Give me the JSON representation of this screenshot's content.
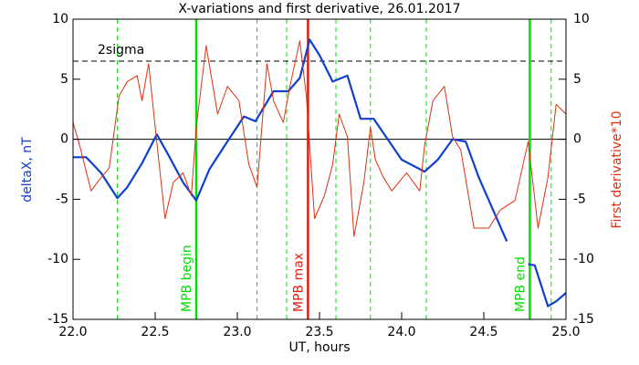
{
  "chart_data": {
    "type": "line",
    "title": "X-variations and first derivative, 26.01.2017",
    "xlabel": "UT, hours",
    "ylabel": "deltaX, nT",
    "y2label": "First derivative*10",
    "xlim": [
      22,
      25
    ],
    "xticks": [
      {
        "value": 22,
        "label": "22.0"
      },
      {
        "value": 22.5,
        "label": "22.5"
      },
      {
        "value": 23,
        "label": "23.0"
      },
      {
        "value": 23.5,
        "label": "23.5"
      },
      {
        "value": 24,
        "label": "24.0"
      },
      {
        "value": 24.5,
        "label": "24.5"
      },
      {
        "value": 25,
        "label": "25.0"
      }
    ],
    "ylim": [
      -15,
      10
    ],
    "yticks": [
      -15,
      -10,
      -5,
      0,
      5,
      10
    ],
    "y2lim": [
      -15,
      10
    ],
    "y2ticks": [
      -15,
      -10,
      -5,
      0,
      5,
      10
    ],
    "zero_line": 0,
    "threshold": {
      "label": "2sigma",
      "value": 6.5
    },
    "markers": [
      {
        "label": "MPB begin",
        "x": 22.75,
        "color": "#00e000"
      },
      {
        "label": "MPB max",
        "x": 23.43,
        "color": "#e02010"
      },
      {
        "label": "MPB end",
        "x": 24.78,
        "color": "#00e000"
      }
    ],
    "dashed_lines": {
      "color": "#00e000",
      "x": [
        22.27,
        23.12,
        23.3,
        23.6,
        23.81,
        24.15,
        24.91
      ]
    },
    "series": [
      {
        "name": "deltaX",
        "color": "#1040d0",
        "axis": "y",
        "x": [
          22.0,
          22.08,
          22.17,
          22.27,
          22.33,
          22.42,
          22.51,
          22.58,
          22.67,
          22.75,
          22.83,
          22.92,
          23.04,
          23.11,
          23.22,
          23.31,
          23.38,
          23.44,
          23.5,
          23.58,
          23.67,
          23.75,
          23.83,
          24.0,
          24.14,
          24.22,
          24.31,
          24.39,
          24.47,
          24.64,
          24.7,
          24.77,
          24.81,
          24.89,
          24.94,
          25.0
        ],
        "values": [
          -1.5,
          -1.5,
          -2.8,
          -4.9,
          -4,
          -2,
          0.4,
          -1.3,
          -3.6,
          -5.1,
          -2.5,
          -0.6,
          1.9,
          1.5,
          4,
          4,
          5.1,
          8.3,
          7,
          4.8,
          5.3,
          1.7,
          1.7,
          -1.7,
          -2.7,
          -1.7,
          0,
          -0.2,
          -3.2,
          -8.5,
          null,
          -10.4,
          -10.5,
          -13.9,
          -13.5,
          -12.8
        ]
      },
      {
        "name": "First derivative*10",
        "color": "#e03010",
        "axis": "y2",
        "x": [
          22.0,
          22.04,
          22.11,
          22.17,
          22.22,
          22.28,
          22.33,
          22.39,
          22.42,
          22.46,
          22.5,
          22.56,
          22.61,
          22.67,
          22.72,
          22.75,
          22.81,
          22.88,
          22.94,
          23.01,
          23.07,
          23.12,
          23.18,
          23.22,
          23.28,
          23.32,
          23.38,
          23.42,
          23.47,
          23.53,
          23.58,
          23.62,
          23.67,
          23.71,
          23.77,
          23.81,
          23.84,
          23.89,
          23.94,
          24.03,
          24.11,
          24.14,
          24.19,
          24.26,
          24.31,
          24.36,
          24.44,
          24.53,
          24.6,
          24.69,
          24.77,
          24.83,
          24.89,
          24.94,
          25.0
        ],
        "values": [
          1.4,
          -0.5,
          -4.3,
          -3.2,
          -2.4,
          3.6,
          4.8,
          5.3,
          3.2,
          6.3,
          1,
          -6.6,
          -3.6,
          -2.8,
          -4.7,
          1,
          7.8,
          2.1,
          4.4,
          3.2,
          -2.1,
          -4,
          6.3,
          3.2,
          1.4,
          4.4,
          8.2,
          3.6,
          -6.6,
          -4.7,
          -2.1,
          2.1,
          0.2,
          -8.1,
          -3.6,
          1,
          -1.7,
          -3.2,
          -4.3,
          -2.8,
          -4.3,
          -0.5,
          3.2,
          4.4,
          0.2,
          -0.9,
          -7.4,
          -7.4,
          -5.9,
          -5.1,
          -0.2,
          -7.4,
          -3.2,
          2.9,
          2.1
        ]
      }
    ]
  }
}
